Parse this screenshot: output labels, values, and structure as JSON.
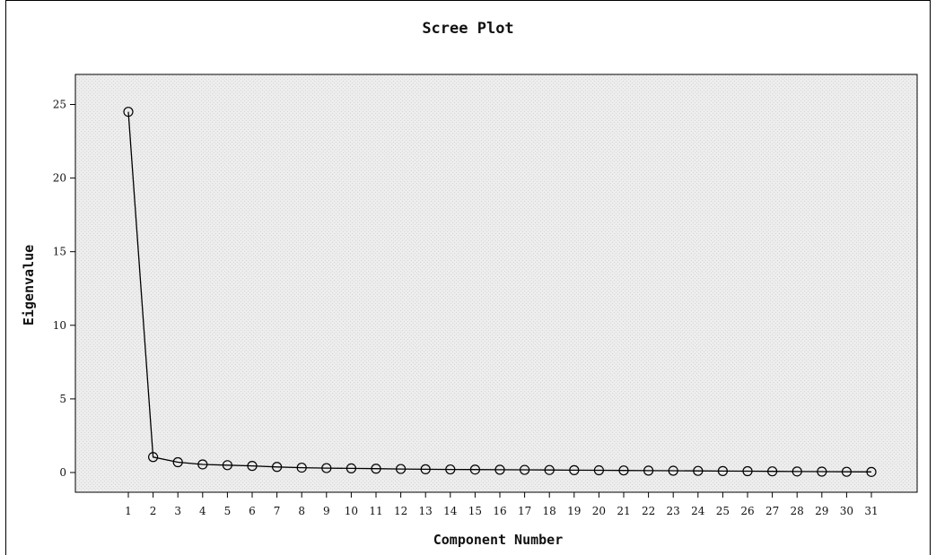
{
  "chart_data": {
    "type": "line",
    "title": "Scree Plot",
    "xlabel": "Component Number",
    "ylabel": "Eigenvalue",
    "x": [
      1,
      2,
      3,
      4,
      5,
      6,
      7,
      8,
      9,
      10,
      11,
      12,
      13,
      14,
      15,
      16,
      17,
      18,
      19,
      20,
      21,
      22,
      23,
      24,
      25,
      26,
      27,
      28,
      29,
      30,
      31
    ],
    "values": [
      24.5,
      1.05,
      0.7,
      0.55,
      0.5,
      0.45,
      0.38,
      0.33,
      0.3,
      0.28,
      0.26,
      0.24,
      0.22,
      0.21,
      0.2,
      0.19,
      0.18,
      0.17,
      0.16,
      0.15,
      0.14,
      0.13,
      0.12,
      0.11,
      0.1,
      0.09,
      0.08,
      0.07,
      0.06,
      0.05,
      0.04
    ],
    "ylim": [
      0,
      25
    ],
    "yticks": [
      0,
      5,
      10,
      15,
      20,
      25
    ],
    "grid": false,
    "marker": "open-circle",
    "colors": {
      "plot_bg": "#ececec",
      "line": "#000000"
    }
  }
}
